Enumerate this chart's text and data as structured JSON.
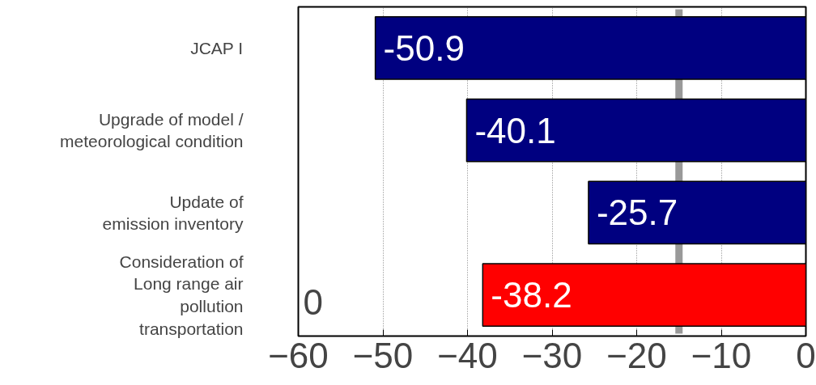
{
  "chart_data": {
    "type": "bar",
    "orientation": "horizontal",
    "categories": [
      "JCAP I",
      "Upgrade of model /\nmeteorological condition",
      "Update of\nemission inventory",
      "Consideration of\nLong range air\npollution\ntransportation"
    ],
    "values": [
      -50.9,
      -40.1,
      -25.7,
      -38.2
    ],
    "colors": [
      "#000080",
      "#000080",
      "#000080",
      "#ff0000"
    ],
    "xlim": [
      -60,
      0
    ],
    "xticks": [
      -60,
      -50,
      -40,
      -30,
      -20,
      -10,
      0
    ],
    "grid": "x",
    "data_labels": true,
    "ref_lines": [
      {
        "axis": "x",
        "value": -15,
        "color": "#999999"
      }
    ],
    "annotations": [
      "0"
    ]
  }
}
